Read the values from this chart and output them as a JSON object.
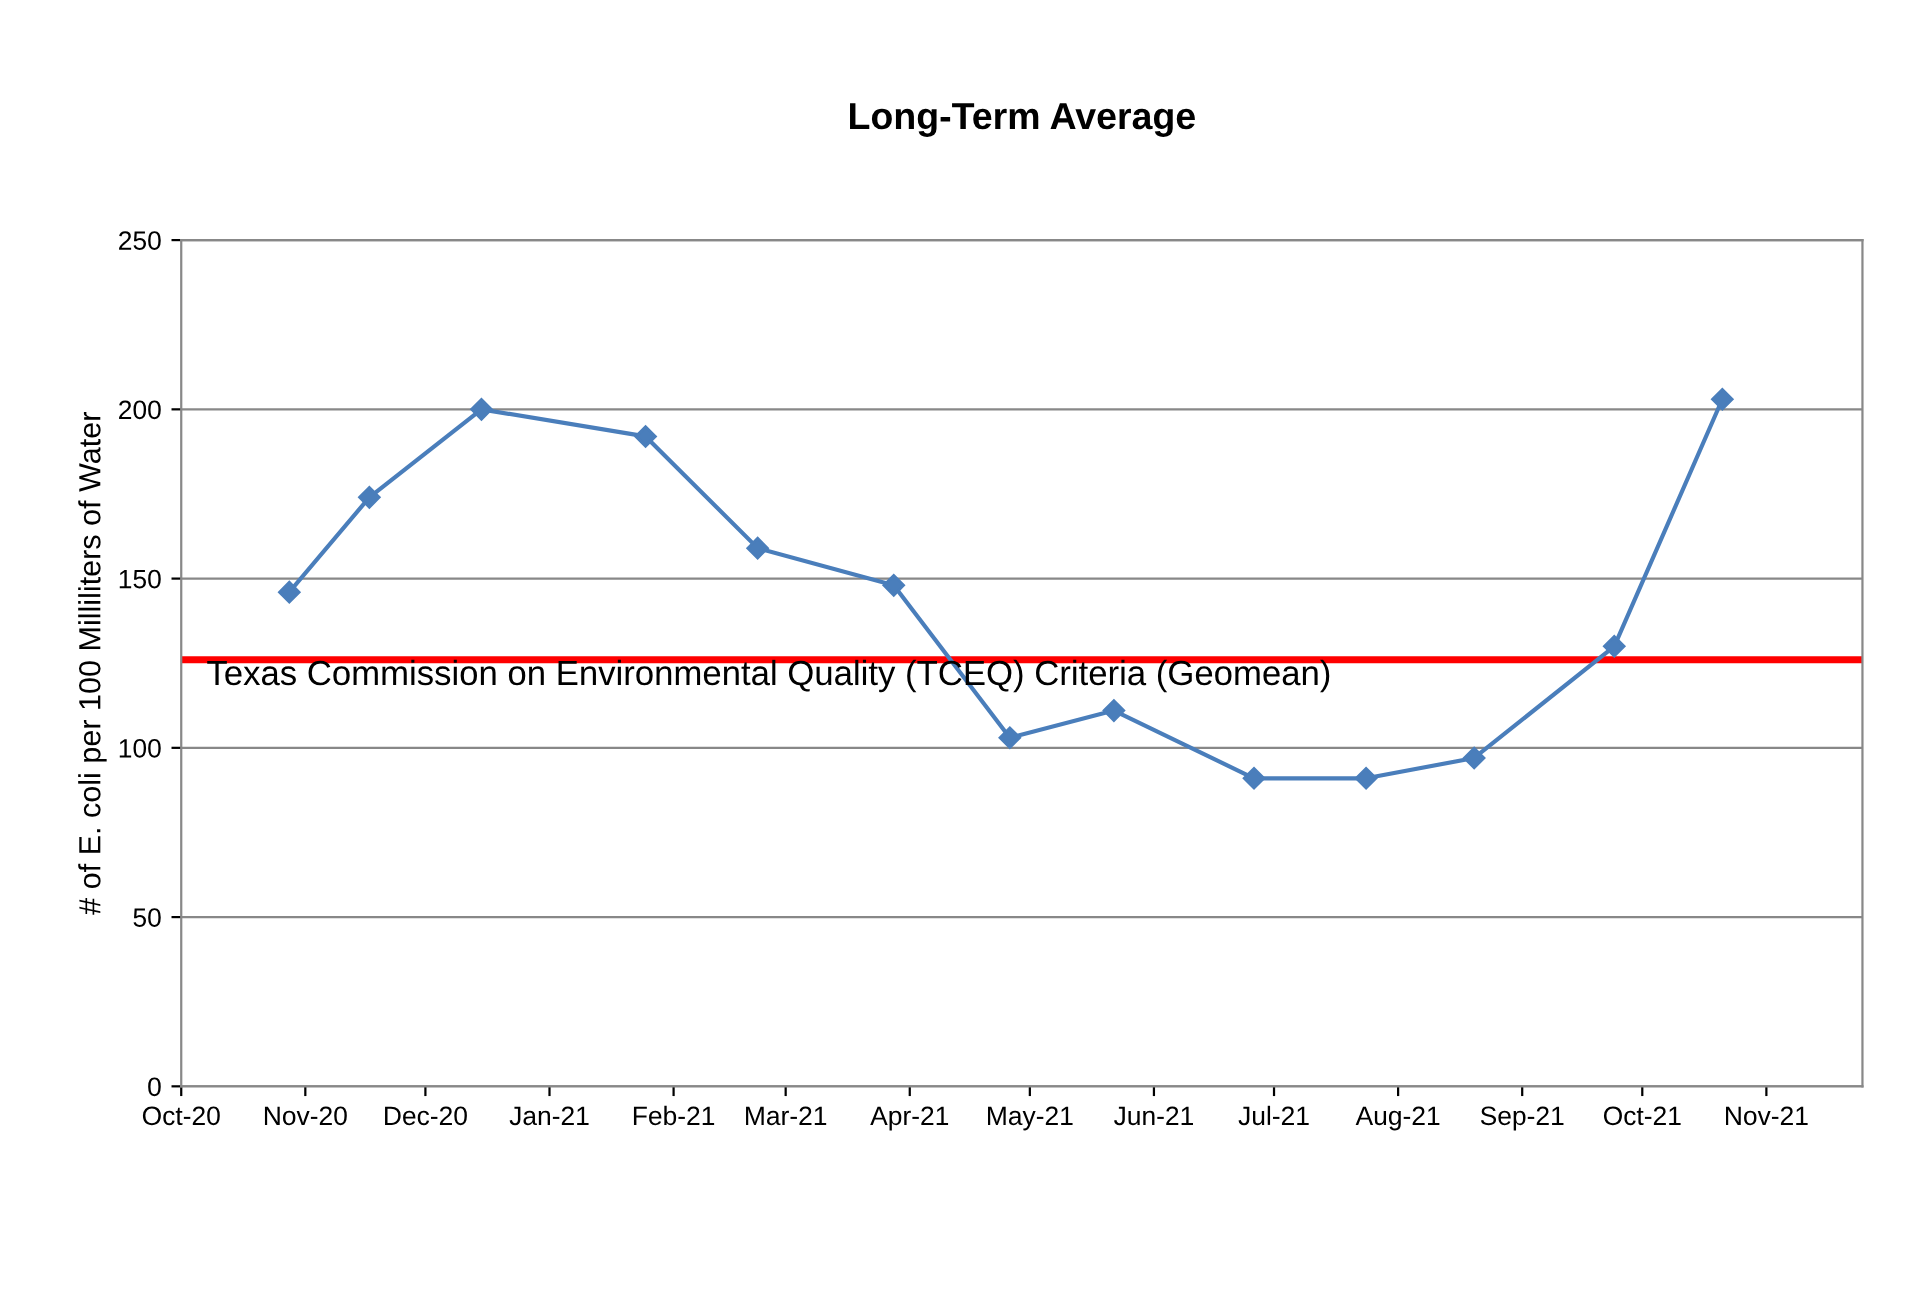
{
  "chart_data": {
    "type": "line",
    "title": "Long-Term Average",
    "ylabel": "# of E. coli per 100 Milliliters of Water",
    "x": [
      "2020-10-28",
      "2020-11-17",
      "2020-12-15",
      "2021-01-25",
      "2021-02-22",
      "2021-03-28",
      "2021-04-26",
      "2021-05-22",
      "2021-06-26",
      "2021-07-24",
      "2021-08-20",
      "2021-09-24",
      "2021-10-21"
    ],
    "series": [
      {
        "color": "#4a7ebb",
        "values": [
          146,
          174,
          200,
          192,
          159,
          148,
          103,
          111,
          91,
          91,
          97,
          130,
          203
        ]
      }
    ],
    "marker": "diamond",
    "line_style": "solid",
    "ylim": [
      0,
      250
    ],
    "yticks": [
      0,
      50,
      100,
      150,
      200,
      250
    ],
    "xlim": [
      "2020-10-01",
      "2021-11-25"
    ],
    "xticks": [
      {
        "value": "2020-10-01",
        "label": "Oct-20"
      },
      {
        "value": "2020-11-01",
        "label": "Nov-20"
      },
      {
        "value": "2020-12-01",
        "label": "Dec-20"
      },
      {
        "value": "2021-01-01",
        "label": "Jan-21"
      },
      {
        "value": "2021-02-01",
        "label": "Feb-21"
      },
      {
        "value": "2021-03-01",
        "label": "Mar-21"
      },
      {
        "value": "2021-04-01",
        "label": "Apr-21"
      },
      {
        "value": "2021-05-01",
        "label": "May-21"
      },
      {
        "value": "2021-06-01",
        "label": "Jun-21"
      },
      {
        "value": "2021-07-01",
        "label": "Jul-21"
      },
      {
        "value": "2021-08-01",
        "label": "Aug-21"
      },
      {
        "value": "2021-09-01",
        "label": "Sep-21"
      },
      {
        "value": "2021-10-01",
        "label": "Oct-21"
      },
      {
        "value": "2021-11-01",
        "label": "Nov-21"
      }
    ],
    "ref_lines": [
      {
        "axis": "y",
        "value": 126,
        "label": "Texas Commission on Environmental Quality (TCEQ) Criteria (Geomean)",
        "color": "#ff0000"
      }
    ],
    "grid": "y",
    "legend": false
  }
}
